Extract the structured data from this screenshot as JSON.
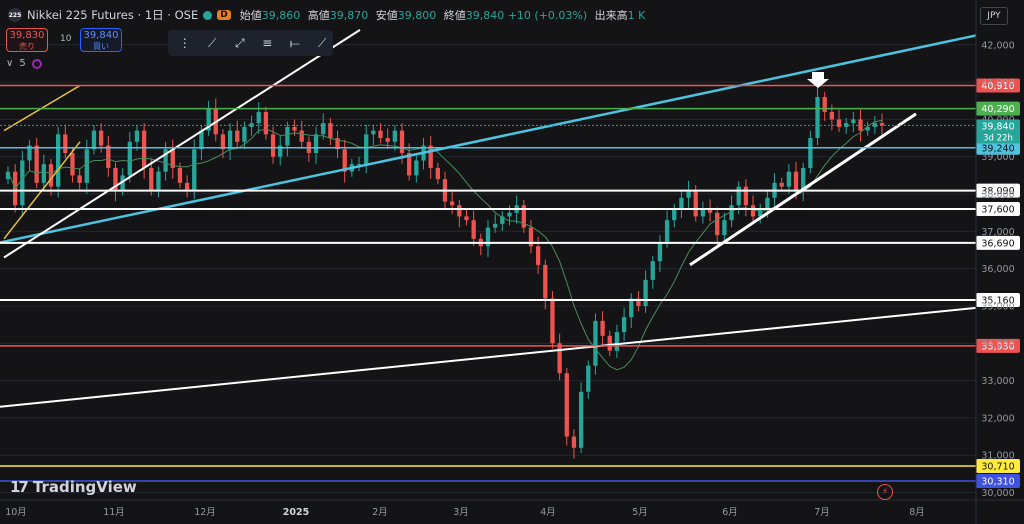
{
  "header": {
    "symbol_badge": "225",
    "title": "Nikkei 225 Futures · 1日 · OSE",
    "d_badge": "D",
    "ohlc": [
      {
        "label": "始値",
        "value": "39,860"
      },
      {
        "label": "高値",
        "value": "39,870"
      },
      {
        "label": "安値",
        "value": "39,800"
      },
      {
        "label": "終値",
        "value": "39,840 +10 (+0.03%)"
      },
      {
        "label": "出来高",
        "value": "1 K"
      }
    ]
  },
  "trade": {
    "sell_price": "39,830",
    "sell_label": "売り",
    "quantity": "10",
    "buy_price": "39,840",
    "buy_label": "買い"
  },
  "indicators": {
    "collapse": "∨",
    "count": "5"
  },
  "currency": "JPY",
  "branding": "TradingView",
  "chart_data": {
    "type": "candlestick",
    "x_labels": [
      "10月",
      "11月",
      "12月",
      "2025",
      "2月",
      "3月",
      "4月",
      "5月",
      "6月",
      "7月",
      "8月"
    ],
    "y_ticks": [
      30000,
      31000,
      32000,
      33000,
      34000,
      35000,
      36000,
      37000,
      38000,
      39000,
      40000,
      41000,
      42000
    ],
    "ylim": [
      29800,
      42450
    ],
    "horizontal_lines": [
      {
        "label": "40,910",
        "value": 40910,
        "color": "#ef5350"
      },
      {
        "label": "40,290",
        "value": 40290,
        "color": "#4caf50"
      },
      {
        "label": "39,240",
        "value": 39240,
        "color": "#4dc3e0"
      },
      {
        "label": "38,090",
        "value": 38090,
        "color": "#ffffff"
      },
      {
        "label": "37,600",
        "value": 37600,
        "color": "#ffffff"
      },
      {
        "label": "36,690",
        "value": 36690,
        "color": "#ffffff"
      },
      {
        "label": "35,160",
        "value": 35160,
        "color": "#ffffff"
      },
      {
        "label": "33,930",
        "value": 33930,
        "color": "#ef5350"
      },
      {
        "label": "30,710",
        "value": 30710,
        "color": "#ffeb3b"
      },
      {
        "label": "30,310",
        "value": 30310,
        "color": "#3f51e0"
      }
    ],
    "last_price": {
      "label": "39,840",
      "countdown": "3d 22h",
      "value": 39840
    },
    "closes": [
      38600,
      37700,
      38900,
      39300,
      38300,
      38800,
      38200,
      39600,
      39100,
      38500,
      38300,
      39200,
      39700,
      39300,
      38700,
      38100,
      38500,
      39400,
      39700,
      38700,
      38100,
      38600,
      39200,
      38700,
      38300,
      38100,
      39200,
      39700,
      40300,
      39600,
      39200,
      39700,
      39400,
      39800,
      39900,
      40200,
      39600,
      39000,
      39300,
      39800,
      39700,
      39400,
      39100,
      39600,
      39900,
      39500,
      39200,
      38600,
      38800,
      38800,
      39600,
      39700,
      39500,
      39400,
      39700,
      39100,
      38500,
      38900,
      39300,
      38700,
      38400,
      37800,
      37700,
      37400,
      37300,
      36800,
      36600,
      37100,
      37200,
      37400,
      37500,
      37700,
      37100,
      36600,
      36100,
      35200,
      34000,
      33200,
      31500,
      31200,
      32700,
      33400,
      34600,
      34200,
      33800,
      34300,
      34700,
      35200,
      35000,
      35700,
      36200,
      36700,
      37300,
      37600,
      37900,
      38100,
      37400,
      37600,
      37500,
      36900,
      37300,
      37700,
      38200,
      37700,
      37400,
      37600,
      37900,
      38300,
      38200,
      38600,
      38100,
      38700,
      39500,
      40600,
      40200,
      40000,
      39800,
      39900,
      40000,
      39700,
      39800,
      39900,
      39840
    ]
  }
}
